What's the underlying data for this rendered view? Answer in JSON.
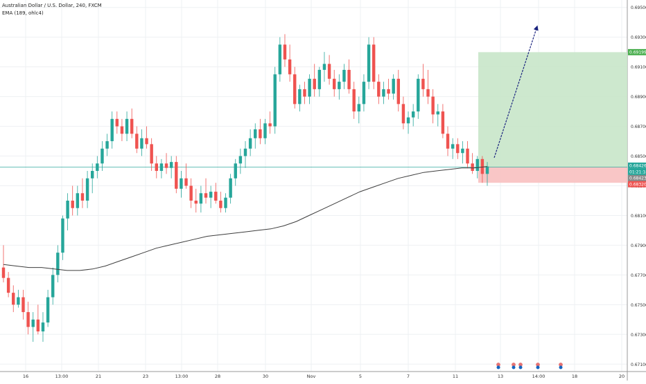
{
  "legend": {
    "symbol_line": "Australian Dollar / U.S. Dollar, 240, FXCM",
    "ema_line": "EMA (189, ohlc4)"
  },
  "price_badges": {
    "target": "0.69199",
    "current_price": "0.68426",
    "countdown": "01:21:18",
    "ema_value": "0.68423",
    "stop": "0.68320"
  },
  "colors": {
    "up": "#26a69a",
    "down": "#ef5350",
    "ema": "#3c3c3c",
    "arrow": "#1a237e",
    "profit_zone": "#c8e6c9",
    "loss_zone": "#f8c0c0",
    "current_line": "#26a69a"
  },
  "chart_data": {
    "type": "candlestick",
    "title": "Australian Dollar / U.S. Dollar, 240, FXCM",
    "y_tick_labels": [
      "0.69500",
      "0.69300",
      "0.69100",
      "0.68900",
      "0.68700",
      "0.68500",
      "0.68300",
      "0.68100",
      "0.67900",
      "0.67700",
      "0.67500",
      "0.67300",
      "0.67100"
    ],
    "x_tick_labels": [
      "16",
      "13:00",
      "21",
      "23",
      "13:00",
      "28",
      "30",
      "Nov",
      "5",
      "7",
      "11",
      "13",
      "14:00",
      "18",
      "20"
    ],
    "ylim": [
      0.6705,
      0.6955
    ],
    "grid": true,
    "candles": [
      [
        0.6775,
        0.679,
        0.6765,
        0.6768
      ],
      [
        0.6768,
        0.6772,
        0.6755,
        0.6758
      ],
      [
        0.6758,
        0.6763,
        0.6745,
        0.675
      ],
      [
        0.675,
        0.676,
        0.6748,
        0.6755
      ],
      [
        0.6755,
        0.676,
        0.674,
        0.6745
      ],
      [
        0.6745,
        0.6752,
        0.673,
        0.6735
      ],
      [
        0.6735,
        0.6745,
        0.6725,
        0.674
      ],
      [
        0.674,
        0.675,
        0.673,
        0.6732
      ],
      [
        0.6732,
        0.6745,
        0.6725,
        0.6738
      ],
      [
        0.6738,
        0.676,
        0.6735,
        0.6755
      ],
      [
        0.6755,
        0.6775,
        0.675,
        0.677
      ],
      [
        0.677,
        0.679,
        0.6765,
        0.6785
      ],
      [
        0.6785,
        0.681,
        0.678,
        0.6808
      ],
      [
        0.6808,
        0.6825,
        0.68,
        0.682
      ],
      [
        0.682,
        0.683,
        0.681,
        0.6815
      ],
      [
        0.6815,
        0.683,
        0.681,
        0.6825
      ],
      [
        0.6825,
        0.6835,
        0.6815,
        0.682
      ],
      [
        0.682,
        0.684,
        0.6815,
        0.6835
      ],
      [
        0.6835,
        0.6845,
        0.6825,
        0.684
      ],
      [
        0.684,
        0.685,
        0.6835,
        0.6845
      ],
      [
        0.6845,
        0.686,
        0.684,
        0.6855
      ],
      [
        0.6855,
        0.6865,
        0.685,
        0.686
      ],
      [
        0.686,
        0.688,
        0.6855,
        0.6875
      ],
      [
        0.6875,
        0.688,
        0.6865,
        0.687
      ],
      [
        0.687,
        0.6875,
        0.686,
        0.6865
      ],
      [
        0.6865,
        0.688,
        0.686,
        0.6875
      ],
      [
        0.6875,
        0.6882,
        0.6862,
        0.6865
      ],
      [
        0.6865,
        0.687,
        0.6852,
        0.6855
      ],
      [
        0.6855,
        0.6868,
        0.685,
        0.6862
      ],
      [
        0.6862,
        0.687,
        0.6855,
        0.6858
      ],
      [
        0.6858,
        0.6862,
        0.684,
        0.6845
      ],
      [
        0.6845,
        0.685,
        0.6835,
        0.684
      ],
      [
        0.684,
        0.6848,
        0.6835,
        0.6845
      ],
      [
        0.6845,
        0.6852,
        0.6838,
        0.6842
      ],
      [
        0.6842,
        0.685,
        0.6835,
        0.6846
      ],
      [
        0.6846,
        0.685,
        0.6825,
        0.6828
      ],
      [
        0.6828,
        0.684,
        0.6822,
        0.6835
      ],
      [
        0.6835,
        0.6845,
        0.6828,
        0.683
      ],
      [
        0.683,
        0.6835,
        0.6815,
        0.682
      ],
      [
        0.682,
        0.6828,
        0.6812,
        0.6818
      ],
      [
        0.6818,
        0.683,
        0.6812,
        0.6825
      ],
      [
        0.6825,
        0.6835,
        0.6818,
        0.6822
      ],
      [
        0.6822,
        0.683,
        0.6815,
        0.6826
      ],
      [
        0.6826,
        0.6832,
        0.6818,
        0.682
      ],
      [
        0.682,
        0.6826,
        0.6812,
        0.6815
      ],
      [
        0.6815,
        0.6825,
        0.6812,
        0.6822
      ],
      [
        0.6822,
        0.6838,
        0.6818,
        0.6835
      ],
      [
        0.6835,
        0.6848,
        0.683,
        0.6845
      ],
      [
        0.6845,
        0.6855,
        0.6838,
        0.685
      ],
      [
        0.685,
        0.686,
        0.6842,
        0.6855
      ],
      [
        0.6855,
        0.6868,
        0.685,
        0.6862
      ],
      [
        0.6862,
        0.6872,
        0.6855,
        0.6868
      ],
      [
        0.6868,
        0.6875,
        0.6858,
        0.6862
      ],
      [
        0.6862,
        0.6875,
        0.6858,
        0.6872
      ],
      [
        0.6872,
        0.688,
        0.6865,
        0.687
      ],
      [
        0.687,
        0.691,
        0.6865,
        0.6905
      ],
      [
        0.6905,
        0.693,
        0.69,
        0.6925
      ],
      [
        0.6925,
        0.6932,
        0.691,
        0.6915
      ],
      [
        0.6915,
        0.6925,
        0.69,
        0.6905
      ],
      [
        0.6905,
        0.691,
        0.6882,
        0.6885
      ],
      [
        0.6885,
        0.6898,
        0.688,
        0.6895
      ],
      [
        0.6895,
        0.69,
        0.6885,
        0.689
      ],
      [
        0.689,
        0.6905,
        0.6885,
        0.6902
      ],
      [
        0.6902,
        0.6912,
        0.689,
        0.6895
      ],
      [
        0.6895,
        0.691,
        0.689,
        0.6908
      ],
      [
        0.6908,
        0.692,
        0.69,
        0.6912
      ],
      [
        0.6912,
        0.6918,
        0.6898,
        0.6902
      ],
      [
        0.6902,
        0.6908,
        0.689,
        0.6895
      ],
      [
        0.6895,
        0.6905,
        0.6888,
        0.69
      ],
      [
        0.69,
        0.6912,
        0.6895,
        0.6908
      ],
      [
        0.6908,
        0.6915,
        0.6892,
        0.6895
      ],
      [
        0.6895,
        0.69,
        0.6875,
        0.688
      ],
      [
        0.688,
        0.689,
        0.6872,
        0.6885
      ],
      [
        0.6885,
        0.6905,
        0.688,
        0.69
      ],
      [
        0.69,
        0.693,
        0.6895,
        0.6925
      ],
      [
        0.6925,
        0.693,
        0.6895,
        0.69
      ],
      [
        0.69,
        0.6905,
        0.6885,
        0.689
      ],
      [
        0.689,
        0.69,
        0.6885,
        0.6895
      ],
      [
        0.6895,
        0.6902,
        0.6888,
        0.6892
      ],
      [
        0.6892,
        0.6905,
        0.6888,
        0.6902
      ],
      [
        0.6902,
        0.6908,
        0.688,
        0.6885
      ],
      [
        0.6885,
        0.689,
        0.6868,
        0.6872
      ],
      [
        0.6872,
        0.688,
        0.6865,
        0.6876
      ],
      [
        0.6876,
        0.6885,
        0.687,
        0.688
      ],
      [
        0.688,
        0.6905,
        0.6875,
        0.6902
      ],
      [
        0.6902,
        0.6912,
        0.689,
        0.6895
      ],
      [
        0.6895,
        0.6908,
        0.6885,
        0.689
      ],
      [
        0.689,
        0.6895,
        0.6872,
        0.6878
      ],
      [
        0.6878,
        0.6885,
        0.687,
        0.688
      ],
      [
        0.688,
        0.6885,
        0.6862,
        0.6865
      ],
      [
        0.6865,
        0.687,
        0.685,
        0.6855
      ],
      [
        0.6855,
        0.6862,
        0.6848,
        0.6858
      ],
      [
        0.6858,
        0.6862,
        0.6848,
        0.6852
      ],
      [
        0.6852,
        0.686,
        0.6845,
        0.6855
      ],
      [
        0.6855,
        0.686,
        0.6842,
        0.6845
      ],
      [
        0.6845,
        0.6852,
        0.6838,
        0.684
      ],
      [
        0.684,
        0.685,
        0.6835,
        0.6848
      ],
      [
        0.6848,
        0.685,
        0.6832,
        0.6838
      ],
      [
        0.6838,
        0.6846,
        0.683,
        0.6843
      ]
    ],
    "ema_series_name": "EMA (189, ohlc4)",
    "ema": [
      0.6777,
      0.6776,
      0.6775,
      0.6775,
      0.6774,
      0.6773,
      0.6773,
      0.6774,
      0.6776,
      0.6779,
      0.6782,
      0.6785,
      0.6788,
      0.679,
      0.6792,
      0.6794,
      0.6796,
      0.6797,
      0.6798,
      0.6799,
      0.68,
      0.6801,
      0.6803,
      0.6806,
      0.681,
      0.6814,
      0.6818,
      0.6822,
      0.6826,
      0.6829,
      0.6832,
      0.6835,
      0.6837,
      0.6839,
      0.684,
      0.6841,
      0.6842,
      0.6842,
      0.6843
    ],
    "long_position": {
      "entry": 0.68426,
      "target": 0.69199,
      "stop": 0.6832
    }
  }
}
